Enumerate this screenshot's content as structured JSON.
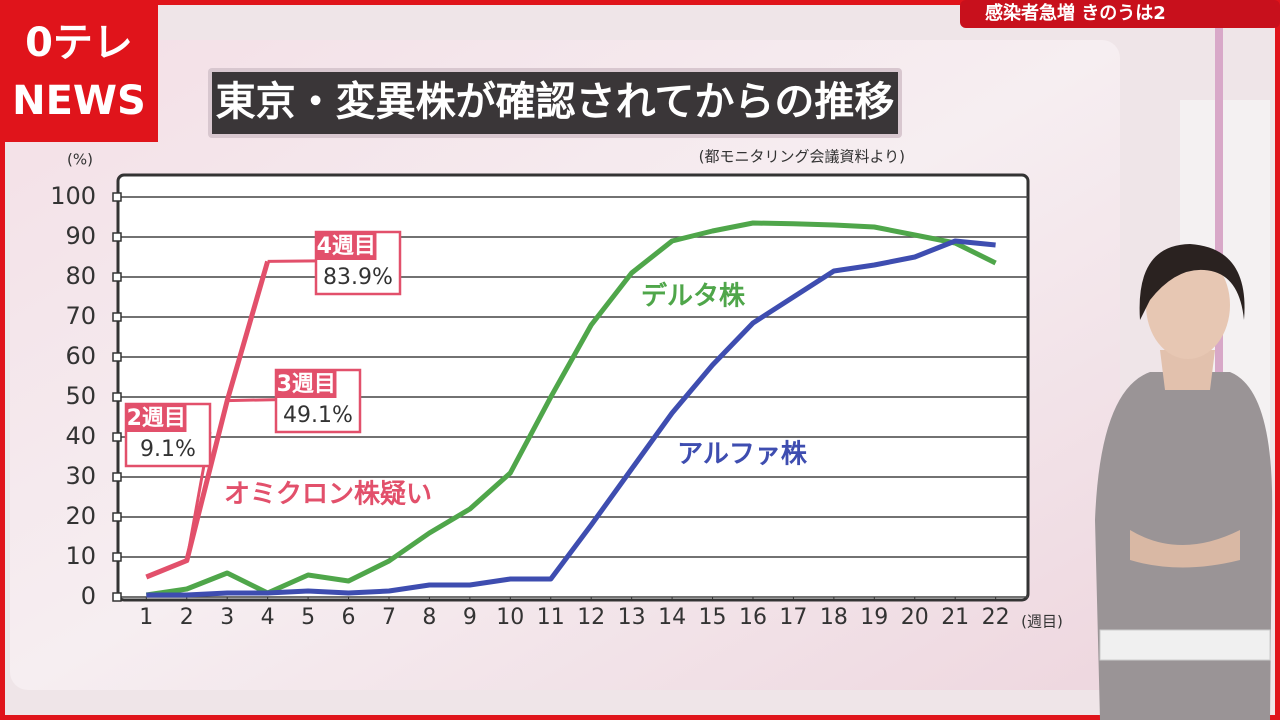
{
  "logo": {
    "top": "0テレ",
    "bottom": "NEWS"
  },
  "ticker": "感染者急増 きのうは2",
  "chart_data": {
    "type": "line",
    "title": "東京・変異株が確認されてからの推移",
    "subtitle": "(都モニタリング会議資料より)",
    "y_label": "(%)",
    "x_label": "(週目)",
    "x": [
      1,
      2,
      3,
      4,
      5,
      6,
      7,
      8,
      9,
      10,
      11,
      12,
      13,
      14,
      15,
      16,
      17,
      18,
      19,
      20,
      21,
      22
    ],
    "xlim": [
      0.3,
      22.8
    ],
    "xticks": [
      1,
      2,
      3,
      4,
      5,
      6,
      7,
      8,
      9,
      10,
      11,
      12,
      13,
      14,
      15,
      16,
      17,
      18,
      19,
      20,
      21,
      22
    ],
    "ylim": [
      0,
      105.5
    ],
    "yticks": [
      0,
      10,
      20,
      30,
      40,
      50,
      60,
      70,
      80,
      90,
      100
    ],
    "grid": true,
    "series": [
      {
        "name": "オミクロン株疑い",
        "color": "#e2506b",
        "values": [
          5,
          9.1,
          49.1,
          83.9,
          null,
          null,
          null,
          null,
          null,
          null,
          null,
          null,
          null,
          null,
          null,
          null,
          null,
          null,
          null,
          null,
          null,
          null
        ],
        "value_labels": [
          null,
          "9.1%",
          "49.1%",
          "83.9%",
          null,
          null,
          null,
          null,
          null,
          null,
          null,
          null,
          null,
          null,
          null,
          null,
          null,
          null,
          null,
          null,
          null,
          null
        ],
        "annotations": [
          null,
          "2週目",
          "3週目",
          "4週目",
          null,
          null,
          null,
          null,
          null,
          null,
          null,
          null,
          null,
          null,
          null,
          null,
          null,
          null,
          null,
          null,
          null,
          null
        ]
      },
      {
        "name": "デルタ株",
        "color": "#4fa64a",
        "values": [
          0.5,
          2,
          6,
          1,
          5.5,
          4,
          9,
          16,
          22,
          31,
          50,
          68,
          81,
          89,
          91.5,
          93.5,
          93.3,
          93,
          92.5,
          90.5,
          88.5,
          83.5
        ]
      },
      {
        "name": "アルファ株",
        "color": "#3e4db0",
        "values": [
          0.5,
          0.5,
          1,
          1,
          1.5,
          1,
          1.5,
          3,
          3,
          4.5,
          4.5,
          18,
          32,
          46,
          58,
          68.5,
          75,
          81.5,
          83,
          85,
          89,
          88
        ]
      }
    ]
  }
}
